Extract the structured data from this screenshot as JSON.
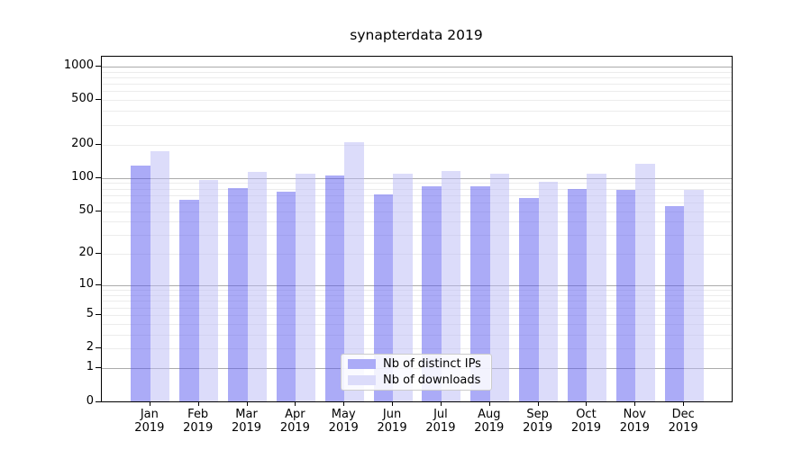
{
  "chart_data": {
    "type": "bar",
    "title": "synapterdata 2019",
    "year_label": "2019",
    "categories": [
      "Jan",
      "Feb",
      "Mar",
      "Apr",
      "May",
      "Jun",
      "Jul",
      "Aug",
      "Sep",
      "Oct",
      "Nov",
      "Dec"
    ],
    "series": [
      {
        "name": "Nb of distinct IPs",
        "color": "rgba(87,87,240,0.5)",
        "legend_color": "#ababf7",
        "values": [
          130,
          63,
          81,
          75,
          105,
          71,
          84,
          84,
          66,
          80,
          78,
          56
        ]
      },
      {
        "name": "Nb of downloads",
        "color": "rgba(185,185,245,0.5)",
        "legend_color": "#dcdcfa",
        "values": [
          173,
          95,
          113,
          109,
          210,
          109,
          115,
          109,
          92,
          110,
          135,
          78
        ]
      }
    ],
    "y_axis": {
      "scale": "log1p",
      "ticks": [
        0,
        1,
        2,
        5,
        10,
        20,
        50,
        100,
        200,
        500,
        1000
      ],
      "major_gridlines": [
        1,
        10,
        100,
        1000
      ],
      "minor_gridlines": [
        2,
        3,
        4,
        5,
        6,
        7,
        8,
        9,
        20,
        30,
        40,
        50,
        60,
        70,
        80,
        90,
        200,
        300,
        400,
        500,
        600,
        700,
        800,
        900
      ],
      "ylim": [
        0,
        1090
      ]
    },
    "x_axis": {
      "label_lines": 2
    },
    "legend": {
      "position": "lower center"
    },
    "grid": true
  }
}
